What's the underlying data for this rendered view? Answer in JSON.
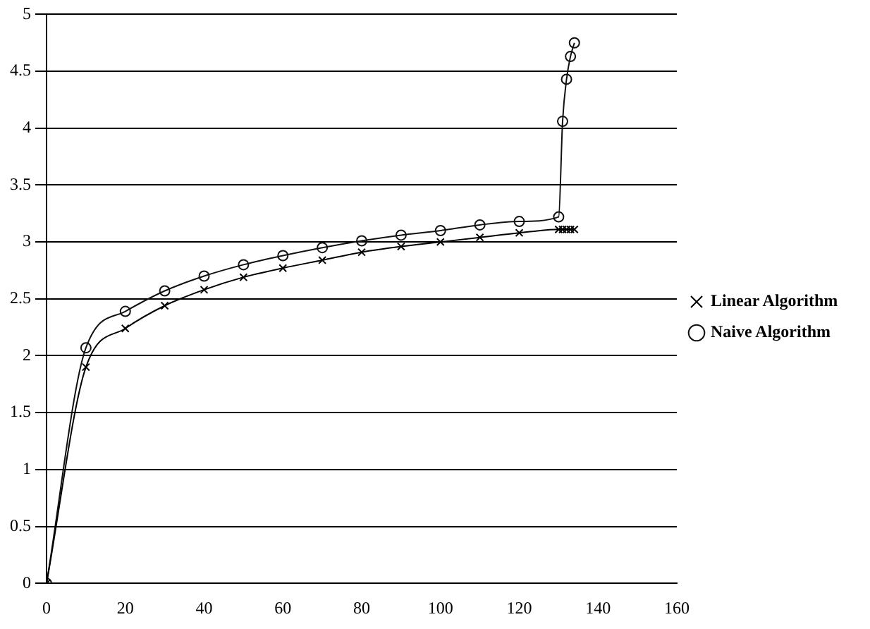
{
  "chart_data": {
    "type": "line",
    "xlim": [
      0,
      160
    ],
    "xticks": [
      0,
      20,
      40,
      60,
      80,
      100,
      120,
      140,
      160
    ],
    "ylim": [
      0,
      5
    ],
    "yticks": [
      0,
      0.5,
      1,
      1.5,
      2,
      2.5,
      3,
      3.5,
      4,
      4.5,
      5
    ],
    "grid": "y",
    "legend": "right",
    "line_style": "solid",
    "series": [
      {
        "name": "Linear Algorithm",
        "color": "#000000",
        "marker": "cross",
        "x": [
          0,
          10,
          20,
          30,
          40,
          50,
          60,
          70,
          80,
          90,
          100,
          110,
          120,
          130,
          131,
          132,
          133,
          134
        ],
        "values": [
          0,
          1.9,
          2.24,
          2.44,
          2.58,
          2.69,
          2.77,
          2.84,
          2.91,
          2.96,
          3.0,
          3.04,
          3.08,
          3.11,
          3.11,
          3.11,
          3.11,
          3.11
        ]
      },
      {
        "name": "Naive Algorithm",
        "color": "#111111",
        "marker": "circle",
        "x": [
          0,
          10,
          20,
          30,
          40,
          50,
          60,
          70,
          80,
          90,
          100,
          110,
          120,
          130,
          131,
          132,
          133,
          134
        ],
        "values": [
          0,
          2.07,
          2.39,
          2.57,
          2.7,
          2.8,
          2.88,
          2.95,
          3.01,
          3.06,
          3.1,
          3.15,
          3.18,
          3.22,
          4.06,
          4.43,
          4.63,
          4.75
        ]
      }
    ]
  }
}
